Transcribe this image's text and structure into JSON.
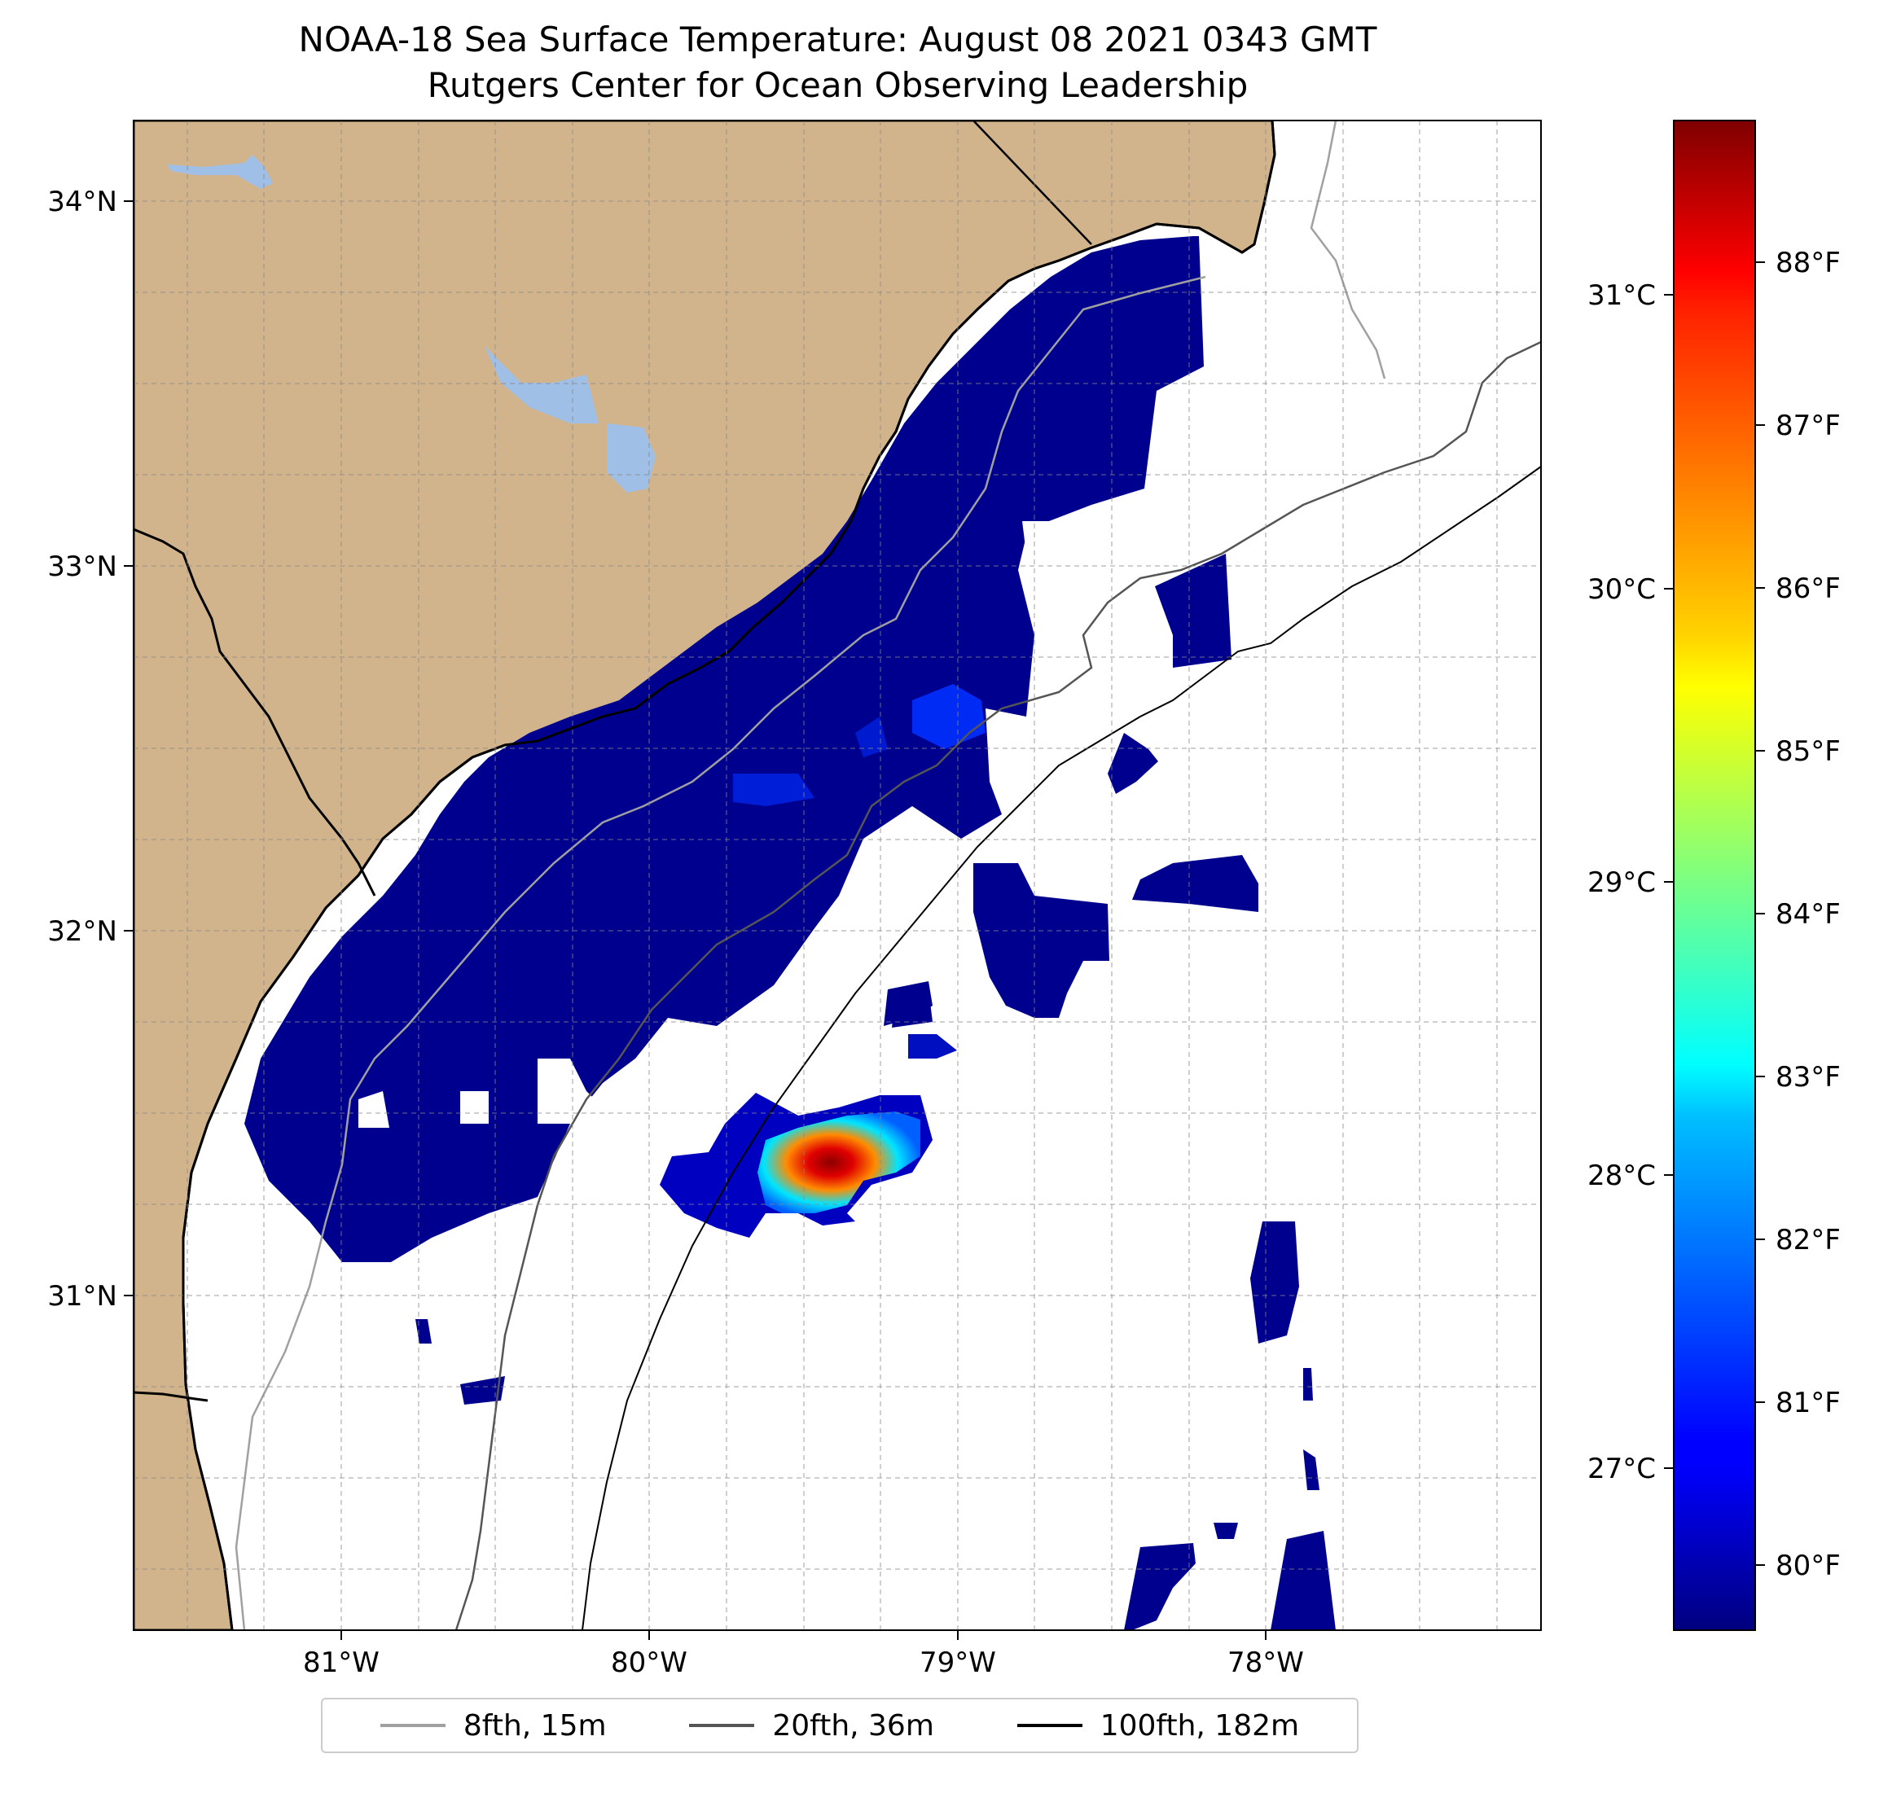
{
  "title": "NOAA-18 Sea Surface Temperature: August 08 2021 0343 GMT",
  "subtitle": "Rutgers Center for Ocean Observing Leadership",
  "map": {
    "lat_range": [
      30.07,
      34.2
    ],
    "lon_range": [
      -81.68,
      -77.12
    ],
    "lat_ticks": [
      "34°N",
      "33°N",
      "32°N",
      "31°N"
    ],
    "lon_ticks": [
      "81°W",
      "80°W",
      "79°W",
      "78°W"
    ],
    "grid": true,
    "land_color": "#d2b48c",
    "lake_color": "#9fbfe6",
    "ocean_color": "#ffffff"
  },
  "colorbar": {
    "celsius_ticks": [
      "31°C",
      "30°C",
      "29°C",
      "28°C",
      "27°C"
    ],
    "fahrenheit_ticks": [
      "88°F",
      "87°F",
      "86°F",
      "85°F",
      "84°F",
      "83°F",
      "82°F",
      "81°F",
      "80°F"
    ],
    "colormap": "jet"
  },
  "legend": [
    {
      "label": "8fth, 15m",
      "color": "#a0a0a0"
    },
    {
      "label": "20fth, 36m",
      "color": "#555555"
    },
    {
      "label": "100fth, 182m",
      "color": "#000000"
    }
  ]
}
